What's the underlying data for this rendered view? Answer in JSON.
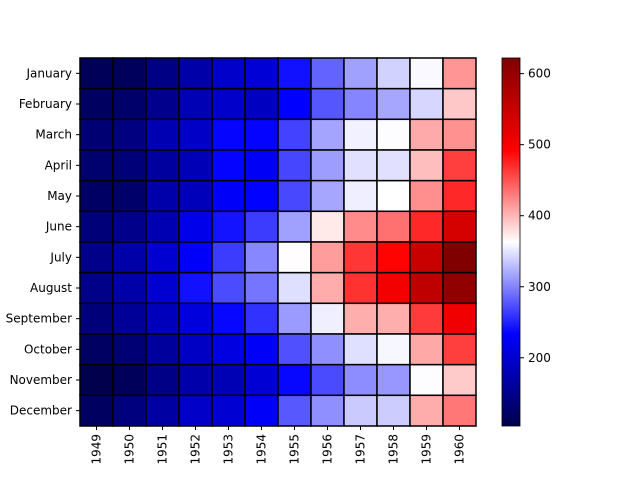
{
  "chart_data": {
    "type": "heatmap",
    "title": "",
    "xlabel": "",
    "ylabel": "",
    "x": [
      "1949",
      "1950",
      "1951",
      "1952",
      "1953",
      "1954",
      "1955",
      "1956",
      "1957",
      "1958",
      "1959",
      "1960"
    ],
    "y": [
      "January",
      "February",
      "March",
      "April",
      "May",
      "June",
      "July",
      "August",
      "September",
      "October",
      "November",
      "December"
    ],
    "values": [
      [
        112,
        115,
        145,
        171,
        196,
        204,
        242,
        284,
        315,
        340,
        360,
        417
      ],
      [
        118,
        126,
        150,
        180,
        196,
        188,
        233,
        277,
        301,
        318,
        342,
        391
      ],
      [
        132,
        141,
        178,
        193,
        236,
        235,
        267,
        317,
        356,
        362,
        406,
        419
      ],
      [
        129,
        135,
        163,
        181,
        235,
        227,
        269,
        313,
        348,
        348,
        396,
        461
      ],
      [
        121,
        125,
        172,
        183,
        229,
        234,
        270,
        318,
        355,
        363,
        420,
        472
      ],
      [
        135,
        149,
        178,
        218,
        243,
        264,
        315,
        374,
        422,
        435,
        472,
        535
      ],
      [
        148,
        170,
        199,
        230,
        264,
        302,
        364,
        413,
        465,
        491,
        548,
        622
      ],
      [
        148,
        170,
        199,
        242,
        272,
        293,
        347,
        405,
        467,
        505,
        559,
        606
      ],
      [
        136,
        158,
        184,
        209,
        237,
        259,
        312,
        355,
        404,
        404,
        463,
        508
      ],
      [
        119,
        133,
        162,
        191,
        211,
        229,
        274,
        306,
        347,
        359,
        407,
        461
      ],
      [
        104,
        114,
        146,
        172,
        180,
        203,
        237,
        271,
        305,
        310,
        362,
        390
      ],
      [
        118,
        140,
        166,
        194,
        201,
        229,
        278,
        306,
        336,
        337,
        405,
        432
      ]
    ],
    "colorbar": {
      "colormap": "seismic",
      "vmin": 104,
      "vmax": 622,
      "ticks": [
        200,
        300,
        400,
        500,
        600
      ]
    },
    "cell_border_color": "#000000"
  }
}
